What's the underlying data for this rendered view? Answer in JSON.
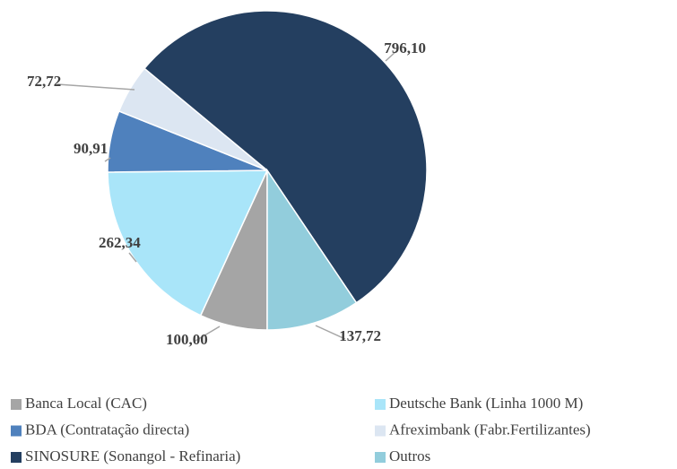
{
  "chart_data": {
    "type": "pie",
    "categories": [
      "Banca Local (CAC)",
      "Deutsche Bank (Linha 1000 M)",
      "BDA (Contratação directa)",
      "Afreximbank (Fabr.Fertilizantes)",
      "SINOSURE (Sonangol - Refinaria)",
      "Outros"
    ],
    "values": [
      100.0,
      262.34,
      90.91,
      72.72,
      796.1,
      137.72
    ],
    "value_labels": [
      "100,00",
      "262,34",
      "90,91",
      "72,72",
      "796,10",
      "137,72"
    ],
    "colors": [
      "#a5a5a5",
      "#a9e5f9",
      "#4f81bd",
      "#dce6f2",
      "#243f60",
      "#92cddc"
    ]
  }
}
